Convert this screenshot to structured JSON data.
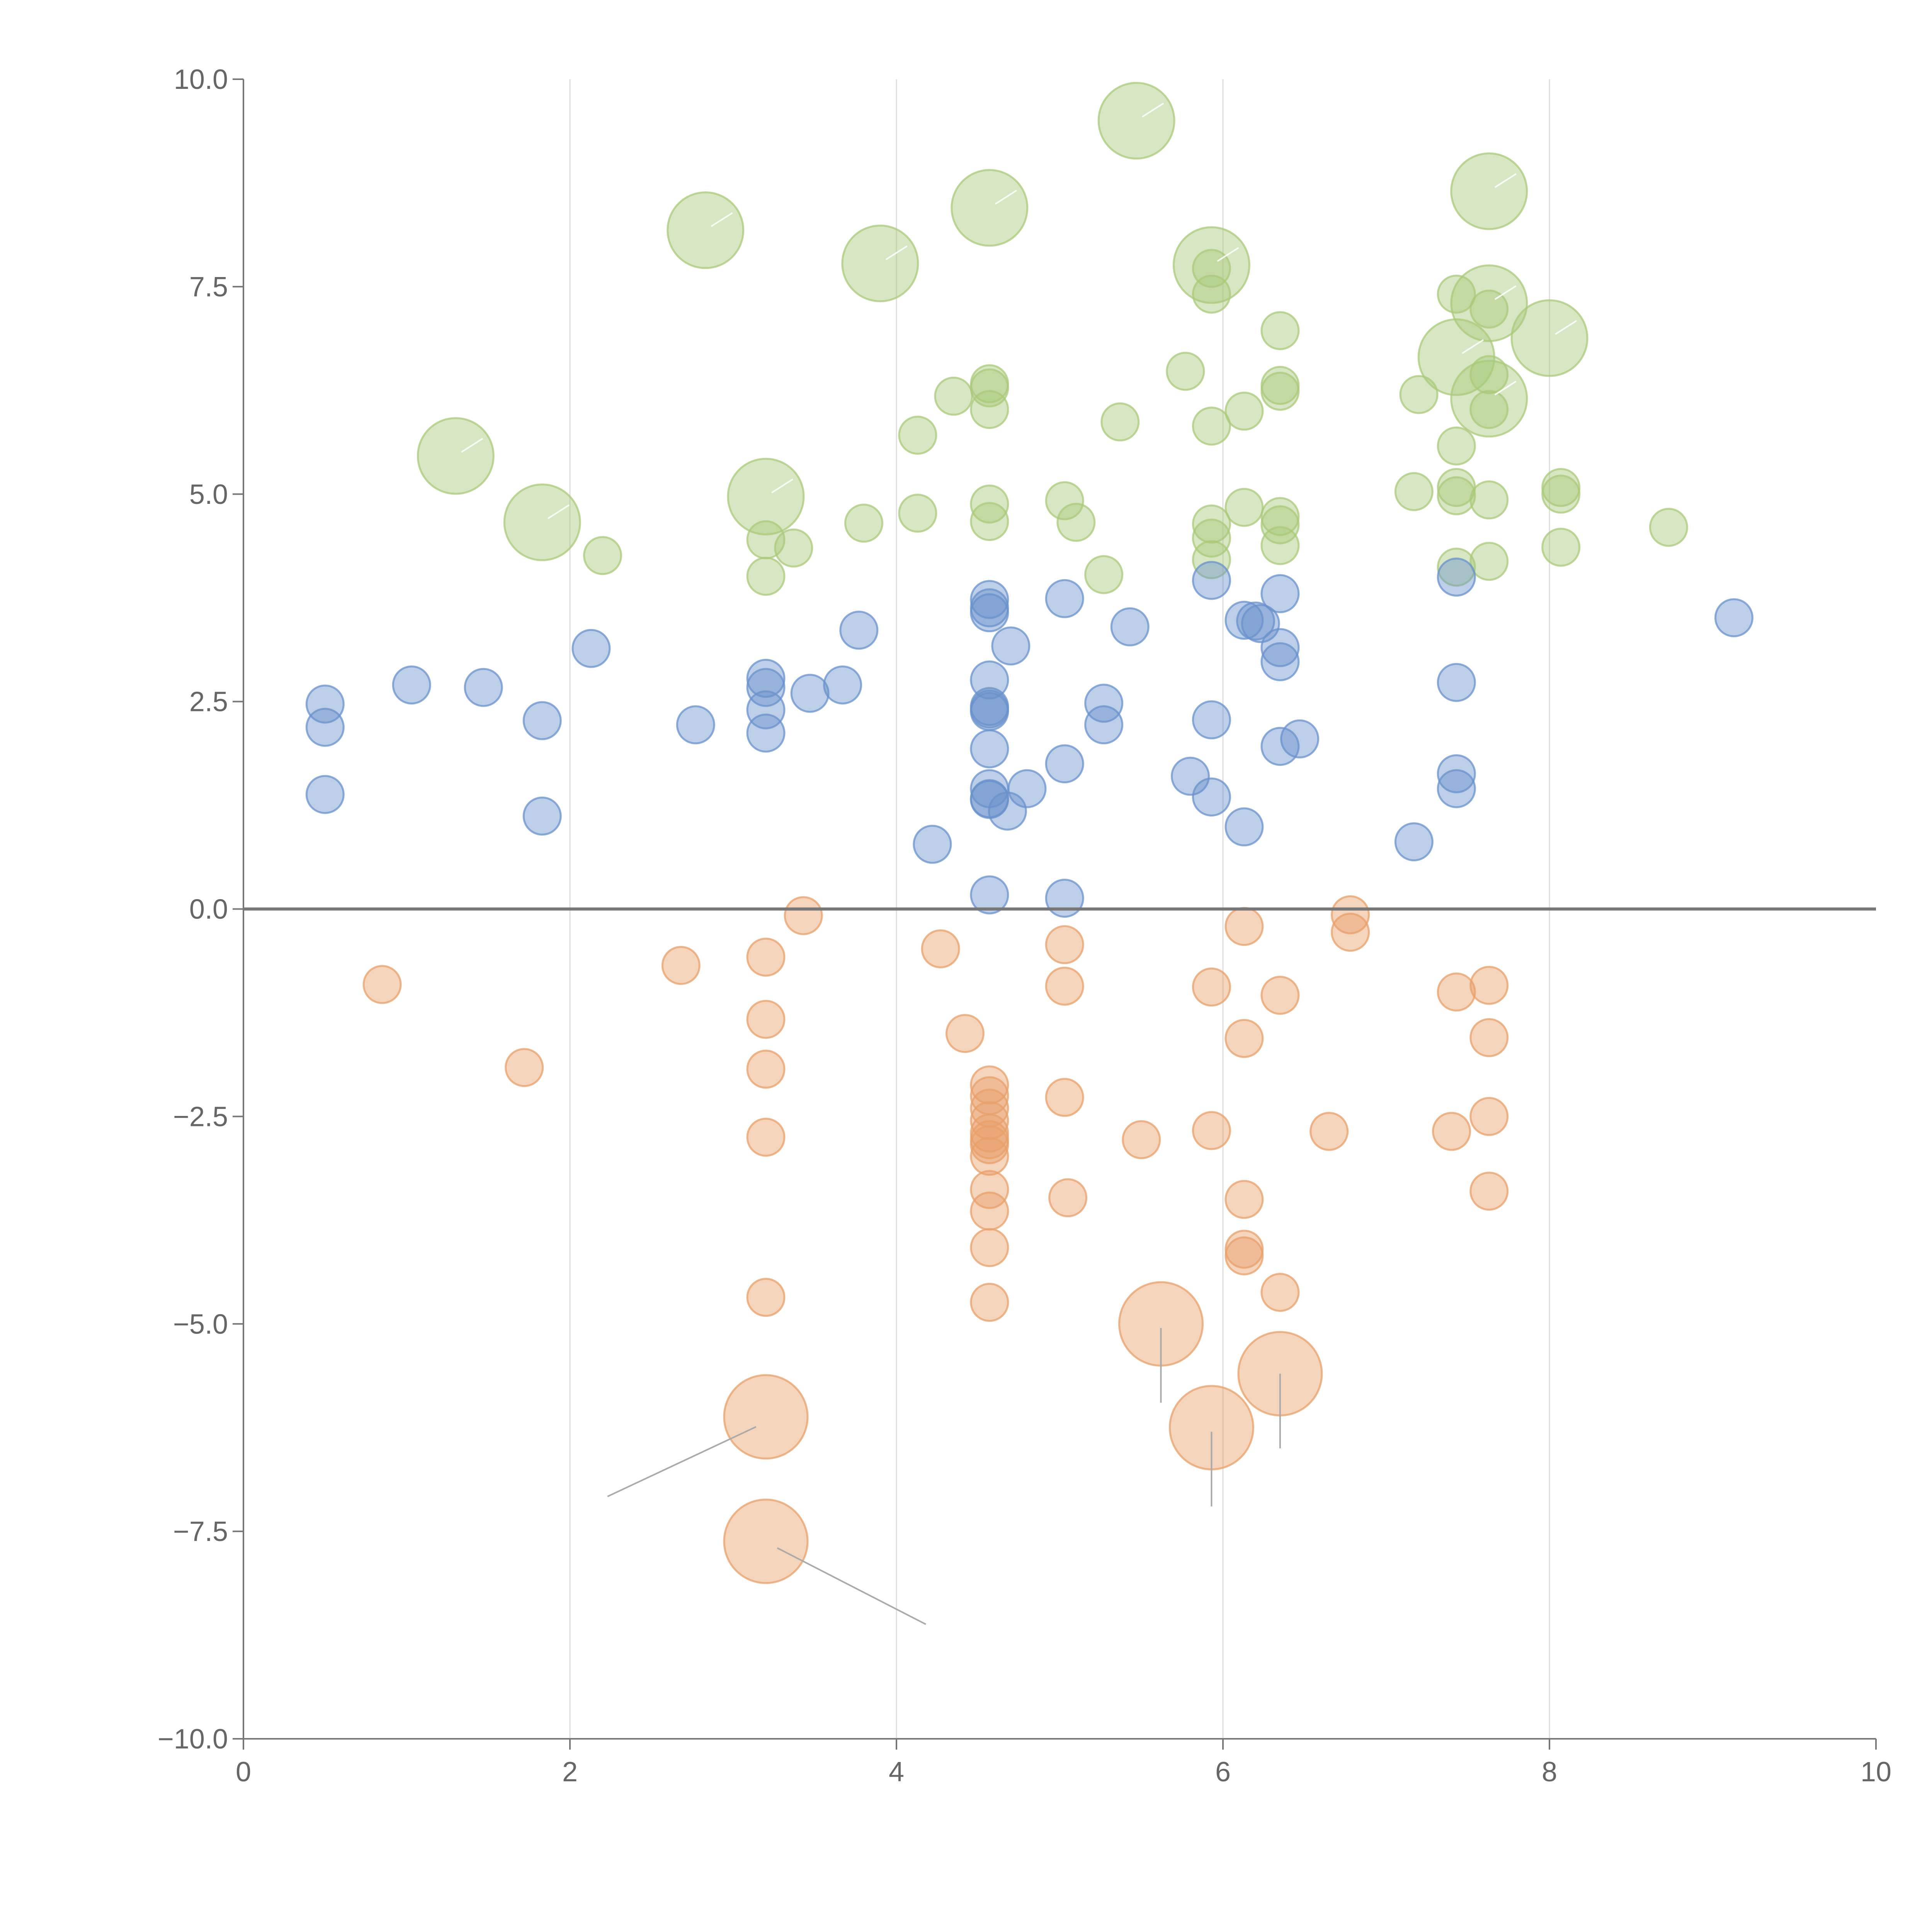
{
  "colors": {
    "green": "#a9c97a",
    "blue": "#6a92cc",
    "orange": "#e8a06a",
    "axis": "#777777",
    "grid": "#dddddd",
    "text": "#666666"
  },
  "chart_data": {
    "type": "scatter",
    "title": "",
    "xlabel": "",
    "ylabel": "",
    "xlim": [
      0,
      10
    ],
    "ylim": [
      -10,
      10
    ],
    "x_ticks": [
      "0",
      "2",
      "4",
      "6",
      "8",
      "10"
    ],
    "y_ticks": [
      "10.0",
      "7.5",
      "5.0",
      "2.5",
      "0.0",
      "−2.5",
      "−5.0",
      "−7.5",
      "−10.0"
    ],
    "x_tick_values": [
      0,
      2,
      4,
      6,
      8,
      10
    ],
    "y_tick_values": [
      10,
      7.5,
      5,
      2.5,
      0,
      -2.5,
      -5,
      -7.5,
      -10
    ],
    "vertical_grid": [
      2,
      4,
      6,
      8
    ],
    "horizontal_reference_line": 0,
    "series": [
      {
        "color": "#a9c97a",
        "points": [
          [
            5.47,
            9.5,
            3
          ],
          [
            4.57,
            8.45,
            3
          ],
          [
            7.63,
            8.65,
            3
          ],
          [
            2.83,
            8.18,
            3
          ],
          [
            3.9,
            7.78,
            3
          ],
          [
            5.93,
            7.76,
            3
          ],
          [
            7.63,
            7.3,
            3
          ],
          [
            8.0,
            6.88,
            3
          ],
          [
            7.43,
            6.65,
            3
          ],
          [
            7.63,
            6.15,
            3
          ],
          [
            1.3,
            5.46,
            3
          ],
          [
            1.83,
            4.66,
            3
          ],
          [
            3.2,
            4.97,
            3
          ],
          [
            5.93,
            7.72,
            1
          ],
          [
            5.93,
            7.41,
            1
          ],
          [
            6.35,
            6.97,
            1
          ],
          [
            7.43,
            7.41,
            1
          ],
          [
            7.63,
            7.23,
            1
          ],
          [
            5.77,
            6.48,
            1
          ],
          [
            4.57,
            6.33,
            1
          ],
          [
            4.57,
            6.28,
            1
          ],
          [
            4.57,
            6.02,
            1
          ],
          [
            4.35,
            6.18,
            1
          ],
          [
            6.13,
            6.0,
            1
          ],
          [
            6.35,
            6.31,
            1
          ],
          [
            6.35,
            6.24,
            1
          ],
          [
            7.63,
            6.44,
            1
          ],
          [
            7.63,
            6.02,
            1
          ],
          [
            7.2,
            6.2,
            1
          ],
          [
            4.13,
            5.71,
            1
          ],
          [
            5.37,
            5.87,
            1
          ],
          [
            5.93,
            5.82,
            1
          ],
          [
            7.43,
            5.58,
            1
          ],
          [
            7.17,
            5.03,
            1
          ],
          [
            7.43,
            5.08,
            1
          ],
          [
            7.43,
            4.98,
            1
          ],
          [
            7.63,
            4.93,
            1
          ],
          [
            8.07,
            5.08,
            1
          ],
          [
            8.07,
            5.0,
            1
          ],
          [
            8.73,
            4.6,
            1
          ],
          [
            5.03,
            4.92,
            1
          ],
          [
            5.1,
            4.66,
            1
          ],
          [
            4.57,
            4.88,
            1
          ],
          [
            4.57,
            4.67,
            1
          ],
          [
            4.13,
            4.77,
            1
          ],
          [
            3.8,
            4.65,
            1
          ],
          [
            3.2,
            4.45,
            1
          ],
          [
            3.37,
            4.35,
            1
          ],
          [
            3.2,
            4.01,
            1
          ],
          [
            2.2,
            4.26,
            1
          ],
          [
            5.93,
            4.64,
            1
          ],
          [
            5.93,
            4.47,
            1
          ],
          [
            5.93,
            4.21,
            1
          ],
          [
            6.13,
            4.84,
            1
          ],
          [
            6.35,
            4.73,
            1
          ],
          [
            6.35,
            4.63,
            1
          ],
          [
            6.35,
            4.38,
            1
          ],
          [
            5.27,
            4.03,
            1
          ],
          [
            7.43,
            4.12,
            1
          ],
          [
            7.63,
            4.19,
            1
          ],
          [
            8.07,
            4.36,
            1
          ]
        ]
      },
      {
        "color": "#6a92cc",
        "points": [
          [
            0.5,
            2.47,
            1
          ],
          [
            0.5,
            2.19,
            1
          ],
          [
            0.5,
            1.38,
            1
          ],
          [
            1.03,
            2.7,
            1
          ],
          [
            1.47,
            2.67,
            1
          ],
          [
            1.83,
            2.27,
            1
          ],
          [
            1.83,
            1.12,
            1
          ],
          [
            2.13,
            3.14,
            1
          ],
          [
            2.77,
            2.22,
            1
          ],
          [
            3.2,
            2.78,
            1
          ],
          [
            3.2,
            2.67,
            1
          ],
          [
            3.2,
            2.4,
            1
          ],
          [
            3.2,
            2.12,
            1
          ],
          [
            3.47,
            2.6,
            1
          ],
          [
            3.67,
            2.7,
            1
          ],
          [
            3.77,
            3.36,
            1
          ],
          [
            4.22,
            0.78,
            1
          ],
          [
            4.57,
            3.73,
            1
          ],
          [
            4.57,
            3.63,
            1
          ],
          [
            4.57,
            3.57,
            1
          ],
          [
            4.57,
            2.76,
            1
          ],
          [
            4.57,
            2.44,
            1
          ],
          [
            4.57,
            2.38,
            1
          ],
          [
            4.57,
            2.41,
            1
          ],
          [
            4.57,
            1.93,
            1
          ],
          [
            4.57,
            1.45,
            1
          ],
          [
            4.57,
            1.32,
            1
          ],
          [
            4.57,
            1.33,
            1
          ],
          [
            4.57,
            0.17,
            1
          ],
          [
            4.7,
            3.17,
            1
          ],
          [
            4.68,
            1.18,
            1
          ],
          [
            4.8,
            1.45,
            1
          ],
          [
            5.03,
            3.74,
            1
          ],
          [
            5.03,
            1.75,
            1
          ],
          [
            5.03,
            0.13,
            1
          ],
          [
            5.27,
            2.48,
            1
          ],
          [
            5.27,
            2.22,
            1
          ],
          [
            5.43,
            3.4,
            1
          ],
          [
            5.8,
            1.6,
            1
          ],
          [
            5.93,
            3.96,
            1
          ],
          [
            5.93,
            2.28,
            1
          ],
          [
            5.93,
            1.35,
            1
          ],
          [
            6.13,
            3.48,
            1
          ],
          [
            6.13,
            0.99,
            1
          ],
          [
            6.2,
            3.47,
            1
          ],
          [
            6.23,
            3.44,
            1
          ],
          [
            6.35,
            3.8,
            1
          ],
          [
            6.35,
            3.15,
            1
          ],
          [
            6.35,
            2.98,
            1
          ],
          [
            6.35,
            1.96,
            1
          ],
          [
            6.47,
            2.05,
            1
          ],
          [
            7.17,
            0.81,
            1
          ],
          [
            7.43,
            4.0,
            1
          ],
          [
            7.43,
            2.73,
            1
          ],
          [
            7.43,
            1.63,
            1
          ],
          [
            7.43,
            1.45,
            1
          ],
          [
            9.13,
            3.51,
            1
          ]
        ]
      },
      {
        "color": "#e8a06a",
        "points": [
          [
            0.85,
            -0.91,
            1
          ],
          [
            1.72,
            -1.91,
            1
          ],
          [
            2.68,
            -0.68,
            1
          ],
          [
            3.2,
            -0.58,
            1
          ],
          [
            3.2,
            -1.33,
            1
          ],
          [
            3.2,
            -1.93,
            1
          ],
          [
            3.2,
            -2.75,
            1
          ],
          [
            3.2,
            -4.68,
            1
          ],
          [
            3.43,
            -0.08,
            1
          ],
          [
            4.27,
            -0.48,
            1
          ],
          [
            4.42,
            -1.5,
            1
          ],
          [
            4.57,
            -2.12,
            1
          ],
          [
            4.57,
            -2.25,
            1
          ],
          [
            4.57,
            -2.4,
            1
          ],
          [
            4.57,
            -2.55,
            1
          ],
          [
            4.57,
            -2.7,
            1
          ],
          [
            4.57,
            -2.78,
            1
          ],
          [
            4.57,
            -2.84,
            1
          ],
          [
            4.57,
            -2.98,
            1
          ],
          [
            4.57,
            -3.38,
            1
          ],
          [
            4.57,
            -3.64,
            1
          ],
          [
            4.57,
            -4.08,
            1
          ],
          [
            4.57,
            -4.74,
            1
          ],
          [
            5.03,
            -0.43,
            1
          ],
          [
            5.03,
            -0.93,
            1
          ],
          [
            5.03,
            -2.27,
            1
          ],
          [
            5.05,
            -3.48,
            1
          ],
          [
            5.5,
            -2.78,
            1
          ],
          [
            5.93,
            -0.94,
            1
          ],
          [
            5.93,
            -2.67,
            1
          ],
          [
            6.13,
            -0.21,
            1
          ],
          [
            6.13,
            -1.56,
            1
          ],
          [
            6.13,
            -3.5,
            1
          ],
          [
            6.13,
            -4.1,
            1
          ],
          [
            6.13,
            -4.18,
            1
          ],
          [
            6.35,
            -1.04,
            1
          ],
          [
            6.35,
            -4.62,
            1
          ],
          [
            6.65,
            -2.68,
            1
          ],
          [
            6.78,
            -0.07,
            1
          ],
          [
            6.78,
            -0.28,
            1
          ],
          [
            7.4,
            -2.68,
            1
          ],
          [
            7.43,
            -1.0,
            1
          ],
          [
            7.63,
            -0.92,
            1
          ],
          [
            7.63,
            -1.55,
            1
          ],
          [
            7.63,
            -2.5,
            1
          ],
          [
            7.63,
            -3.4,
            1
          ],
          [
            5.62,
            -5.0,
            2.3
          ],
          [
            6.35,
            -5.6,
            2.3
          ],
          [
            5.93,
            -6.25,
            2.3
          ],
          [
            3.2,
            -6.12,
            2.3
          ],
          [
            3.2,
            -7.62,
            2.3
          ]
        ]
      }
    ]
  }
}
